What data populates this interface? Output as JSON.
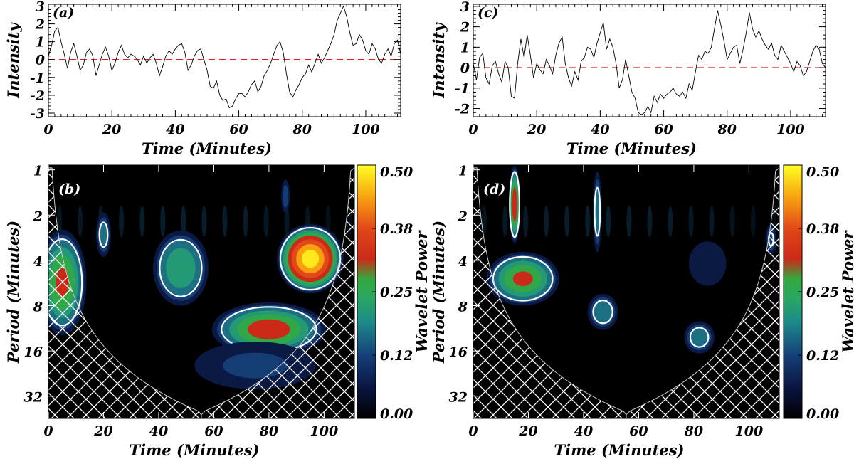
{
  "chart_data": [
    {
      "type": "line",
      "panel": "(a)",
      "xlabel": "Time (Minutes)",
      "ylabel": "Intensity",
      "xlim": [
        0,
        111
      ],
      "ylim": [
        -3.2,
        3.1
      ],
      "xticks": [
        0,
        20,
        40,
        60,
        80,
        100
      ],
      "yticks": [
        3,
        2,
        1,
        0,
        -1,
        -2,
        -3
      ],
      "reference_line": {
        "y": 0,
        "style": "dashed",
        "color": "#e02020"
      },
      "x": [
        0,
        1,
        2,
        3,
        4,
        5,
        6,
        7,
        8,
        9,
        10,
        11,
        12,
        13,
        14,
        15,
        16,
        17,
        18,
        19,
        20,
        21,
        22,
        23,
        24,
        25,
        26,
        27,
        28,
        29,
        30,
        31,
        32,
        33,
        34,
        35,
        36,
        37,
        38,
        39,
        40,
        41,
        42,
        43,
        44,
        45,
        46,
        47,
        48,
        49,
        50,
        51,
        52,
        53,
        54,
        55,
        56,
        57,
        58,
        59,
        60,
        61,
        62,
        63,
        64,
        65,
        66,
        67,
        68,
        69,
        70,
        71,
        72,
        73,
        74,
        75,
        76,
        77,
        78,
        79,
        80,
        81,
        82,
        83,
        84,
        85,
        86,
        87,
        88,
        89,
        90,
        91,
        92,
        93,
        94,
        95,
        96,
        97,
        98,
        99,
        100,
        101,
        102,
        103,
        104,
        105,
        106,
        107,
        108,
        109,
        110,
        111
      ],
      "values": [
        0.2,
        0.8,
        1.6,
        1.8,
        1.0,
        0.3,
        -0.5,
        0.4,
        0.9,
        0.2,
        -0.6,
        -0.3,
        0.4,
        0.6,
        0.2,
        -0.9,
        -0.3,
        0.3,
        0.7,
        0.2,
        -0.6,
        -0.2,
        0.4,
        0.8,
        0.3,
        0.1,
        0.3,
        0.2,
        0.0,
        -0.3,
        0.2,
        -0.2,
        0.1,
        0.3,
        -0.2,
        -0.9,
        -0.4,
        0.2,
        0.5,
        0.3,
        0.6,
        0.8,
        0.9,
        0.4,
        -0.6,
        -0.3,
        0.2,
        0.5,
        0.6,
        0.0,
        -0.6,
        -1.5,
        -1.6,
        -1.2,
        -2.0,
        -2.3,
        -2.2,
        -2.7,
        -2.6,
        -2.2,
        -1.9,
        -1.9,
        -2.1,
        -1.8,
        -1.4,
        -1.2,
        -1.8,
        -1.5,
        -0.9,
        -0.6,
        -0.2,
        0.3,
        0.8,
        1.0,
        0.4,
        -0.8,
        -1.8,
        -2.1,
        -1.7,
        -1.4,
        -1.0,
        -0.8,
        -0.3,
        -0.7,
        -0.2,
        0.3,
        -0.2,
        0.1,
        0.5,
        0.9,
        1.4,
        2.2,
        2.6,
        3.0,
        2.4,
        1.5,
        0.8,
        0.9,
        1.4,
        1.1,
        0.5,
        0.3,
        0.9,
        0.6,
        0.0,
        -0.2,
        0.3,
        0.6,
        0.2,
        0.9,
        1.1,
        0.3
      ],
      "wavelet": {
        "panel": "(b)",
        "xlabel": "Time (Minutes)",
        "ylabel": "Period (Minutes)",
        "yticks": [
          1,
          2,
          4,
          8,
          16,
          32
        ],
        "colorbar_label": "Wavelet Power",
        "colorbar_ticks": [
          "0.50",
          "0.38",
          "0.25",
          "0.12",
          "0.00"
        ],
        "power_regions": [
          {
            "t": 5,
            "period": 5.6,
            "power": 0.3,
            "spread_t": 6,
            "spread_p": 0.55
          },
          {
            "t": 48,
            "period": 4.5,
            "power": 0.24,
            "spread_t": 7,
            "spread_p": 0.4
          },
          {
            "t": 95,
            "period": 3.9,
            "power": 0.48,
            "spread_t": 8,
            "spread_p": 0.35
          },
          {
            "t": 80,
            "period": 11.5,
            "power": 0.32,
            "spread_t": 14,
            "spread_p": 0.28
          },
          {
            "t": 20,
            "period": 2.7,
            "power": 0.16,
            "spread_t": 2,
            "spread_p": 0.25
          },
          {
            "t": 86,
            "period": 1.5,
            "power": 0.12,
            "spread_t": 1.2,
            "spread_p": 0.2
          },
          {
            "t": 75,
            "period": 20,
            "power": 0.1,
            "spread_t": 18,
            "spread_p": 0.3
          }
        ]
      }
    },
    {
      "type": "line",
      "panel": "(c)",
      "xlabel": "Time (Minutes)",
      "ylabel": "Intensity",
      "xlim": [
        0,
        111
      ],
      "ylim": [
        -2.4,
        3.1
      ],
      "xticks": [
        0,
        20,
        40,
        60,
        80,
        100
      ],
      "yticks": [
        3,
        2,
        1,
        0,
        -1,
        -2
      ],
      "reference_line": {
        "y": 0,
        "style": "dashed",
        "color": "#e02020"
      },
      "x": [
        0,
        1,
        2,
        3,
        4,
        5,
        6,
        7,
        8,
        9,
        10,
        11,
        12,
        13,
        14,
        15,
        16,
        17,
        18,
        19,
        20,
        21,
        22,
        23,
        24,
        25,
        26,
        27,
        28,
        29,
        30,
        31,
        32,
        33,
        34,
        35,
        36,
        37,
        38,
        39,
        40,
        41,
        42,
        43,
        44,
        45,
        46,
        47,
        48,
        49,
        50,
        51,
        52,
        53,
        54,
        55,
        56,
        57,
        58,
        59,
        60,
        61,
        62,
        63,
        64,
        65,
        66,
        67,
        68,
        69,
        70,
        71,
        72,
        73,
        74,
        75,
        76,
        77,
        78,
        79,
        80,
        81,
        82,
        83,
        84,
        85,
        86,
        87,
        88,
        89,
        90,
        91,
        92,
        93,
        94,
        95,
        96,
        97,
        98,
        99,
        100,
        101,
        102,
        103,
        104,
        105,
        106,
        107,
        108,
        109,
        110,
        111
      ],
      "values": [
        0.2,
        -0.6,
        0.5,
        0.7,
        -0.5,
        -0.8,
        0.1,
        0.3,
        -0.3,
        -0.7,
        0.3,
        0.0,
        -1.4,
        -1.5,
        0.2,
        1.4,
        0.5,
        1.6,
        0.6,
        -0.5,
        0.2,
        -0.1,
        -0.3,
        0.4,
        0.1,
        -0.3,
        0.6,
        1.2,
        1.5,
        0.2,
        -0.5,
        -0.9,
        -0.2,
        -0.6,
        0.3,
        0.5,
        1.0,
        0.9,
        0.5,
        1.2,
        1.7,
        2.2,
        0.9,
        1.4,
        1.0,
        0.2,
        -1.0,
        -0.6,
        0.4,
        -0.4,
        -1.2,
        -1.5,
        -2.2,
        -2.3,
        -2.2,
        -1.9,
        -2.2,
        -1.4,
        -1.7,
        -1.3,
        -1.5,
        -1.3,
        -1.2,
        -1.0,
        -1.3,
        -1.4,
        -1.2,
        -1.5,
        -0.8,
        -1.1,
        -0.2,
        0.6,
        0.4,
        0.8,
        0.7,
        1.0,
        1.9,
        2.8,
        2.1,
        1.3,
        0.4,
        0.7,
        1.0,
        1.1,
        0.2,
        0.9,
        1.7,
        2.7,
        1.9,
        1.5,
        1.8,
        1.4,
        1.1,
        0.9,
        1.2,
        0.6,
        0.4,
        1.1,
        0.8,
        0.5,
        0.2,
        -0.2,
        0.3,
        0.1,
        -0.4,
        -0.2,
        0.3,
        0.8,
        1.1,
        0.9,
        0.2,
        0.0
      ],
      "wavelet": {
        "panel": "(d)",
        "xlabel": "Time (Minutes)",
        "ylabel": "Period (Minutes)",
        "yticks": [
          1,
          2,
          4,
          8,
          16,
          32
        ],
        "colorbar_label": "Wavelet Power",
        "colorbar_ticks": [
          "0.50",
          "0.38",
          "0.25",
          "0.12",
          "0.00"
        ],
        "power_regions": [
          {
            "t": 15,
            "period": 1.7,
            "power": 0.34,
            "spread_t": 1.4,
            "spread_p": 0.4
          },
          {
            "t": 18,
            "period": 5.3,
            "power": 0.3,
            "spread_t": 9,
            "spread_p": 0.28
          },
          {
            "t": 45,
            "period": 1.9,
            "power": 0.17,
            "spread_t": 1.2,
            "spread_p": 0.45
          },
          {
            "t": 47,
            "period": 8.8,
            "power": 0.18,
            "spread_t": 4,
            "spread_p": 0.2
          },
          {
            "t": 82,
            "period": 13,
            "power": 0.17,
            "spread_t": 4,
            "spread_p": 0.18
          },
          {
            "t": 108,
            "period": 2.9,
            "power": 0.14,
            "spread_t": 1.5,
            "spread_p": 0.18
          },
          {
            "t": 85,
            "period": 4.2,
            "power": 0.08,
            "spread_t": 6,
            "spread_p": 0.3
          }
        ]
      }
    }
  ]
}
